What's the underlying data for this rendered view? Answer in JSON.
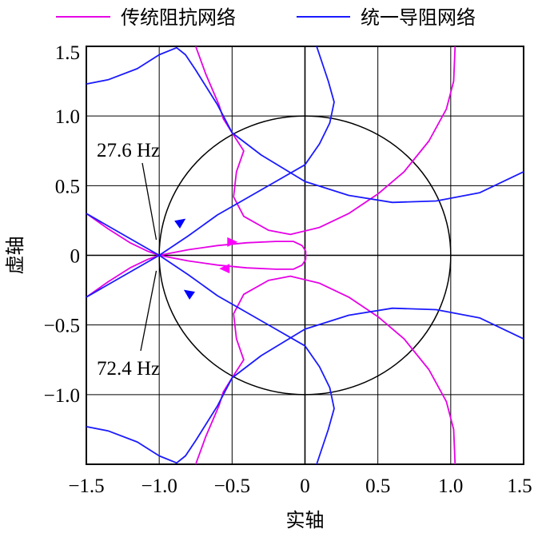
{
  "chart_data": {
    "type": "line",
    "title": "",
    "xlabel": "实轴",
    "ylabel": "虚轴",
    "xlim": [
      -1.5,
      1.5
    ],
    "ylim": [
      -1.5,
      1.5
    ],
    "x_ticks": [
      "−1.5",
      "−1.0",
      "−0.5",
      "0",
      "0.5",
      "1.0",
      "1.5"
    ],
    "y_ticks": [
      "1.5",
      "1.0",
      "0.5",
      "0",
      "−0.5",
      "−1.0"
    ],
    "grid": true,
    "legend_position": "top",
    "unit_circle": true,
    "colors": {
      "traditional": "#e600e6",
      "unified": "#1a1aff",
      "circle": "#000000",
      "arrow_traditional": "#ff00ff",
      "arrow_unified": "#0000ff"
    },
    "annotations": [
      {
        "text": "27.6 Hz",
        "target": [
          -1.02,
          0.1
        ]
      },
      {
        "text": "72.4 Hz",
        "target": [
          -1.02,
          -0.1
        ]
      }
    ],
    "series": [
      {
        "name": "传统阻抗网络",
        "color": "#e600e6",
        "segments": [
          [
            [
              -1.5,
              0.3
            ],
            [
              -1.35,
              0.19
            ],
            [
              -1.2,
              0.09
            ],
            [
              -1.08,
              0.03
            ],
            [
              -1.0,
              0.0
            ],
            [
              -0.8,
              0.04
            ],
            [
              -0.6,
              0.07
            ],
            [
              -0.4,
              0.09
            ],
            [
              -0.2,
              0.1
            ],
            [
              -0.08,
              0.1
            ],
            [
              -0.02,
              0.07
            ],
            [
              0.005,
              0.03
            ],
            [
              0.005,
              -0.03
            ],
            [
              -0.02,
              -0.07
            ],
            [
              -0.08,
              -0.1
            ],
            [
              -0.2,
              -0.1
            ],
            [
              -0.4,
              -0.09
            ],
            [
              -0.6,
              -0.07
            ],
            [
              -0.8,
              -0.04
            ],
            [
              -1.0,
              0.0
            ],
            [
              -1.08,
              -0.03
            ],
            [
              -1.2,
              -0.09
            ],
            [
              -1.35,
              -0.19
            ],
            [
              -1.5,
              -0.3
            ]
          ],
          [
            [
              1.03,
              1.5
            ],
            [
              1.02,
              1.25
            ],
            [
              0.97,
              1.05
            ],
            [
              0.85,
              0.82
            ],
            [
              0.68,
              0.6
            ],
            [
              0.5,
              0.44
            ],
            [
              0.3,
              0.3
            ],
            [
              0.1,
              0.2
            ],
            [
              -0.1,
              0.15
            ],
            [
              -0.25,
              0.18
            ],
            [
              -0.42,
              0.28
            ],
            [
              -0.49,
              0.42
            ],
            [
              -0.47,
              0.6
            ],
            [
              -0.42,
              0.75
            ],
            [
              -0.5,
              0.88
            ],
            [
              -0.56,
              0.98
            ],
            [
              -0.59,
              1.08
            ],
            [
              -0.68,
              1.3
            ],
            [
              -0.75,
              1.5
            ]
          ],
          [
            [
              1.03,
              -1.5
            ],
            [
              1.02,
              -1.25
            ],
            [
              0.97,
              -1.05
            ],
            [
              0.85,
              -0.82
            ],
            [
              0.68,
              -0.6
            ],
            [
              0.5,
              -0.44
            ],
            [
              0.3,
              -0.3
            ],
            [
              0.1,
              -0.2
            ],
            [
              -0.1,
              -0.15
            ],
            [
              -0.25,
              -0.18
            ],
            [
              -0.42,
              -0.28
            ],
            [
              -0.49,
              -0.42
            ],
            [
              -0.47,
              -0.6
            ],
            [
              -0.42,
              -0.75
            ],
            [
              -0.5,
              -0.88
            ],
            [
              -0.56,
              -0.98
            ],
            [
              -0.59,
              -1.08
            ],
            [
              -0.68,
              -1.3
            ],
            [
              -0.75,
              -1.5
            ]
          ]
        ]
      },
      {
        "name": "统一导阻网络",
        "color": "#1a1aff",
        "segments": [
          [
            [
              -1.5,
              -0.3
            ],
            [
              -1.25,
              -0.15
            ],
            [
              -1.0,
              0.0
            ],
            [
              -0.8,
              0.14
            ],
            [
              -0.6,
              0.29
            ],
            [
              -0.4,
              0.41
            ],
            [
              -0.2,
              0.53
            ],
            [
              0.0,
              0.65
            ],
            [
              0.1,
              0.8
            ],
            [
              0.17,
              0.95
            ],
            [
              0.2,
              1.1
            ],
            [
              0.16,
              1.25
            ],
            [
              0.08,
              1.5
            ]
          ],
          [
            [
              -1.5,
              1.23
            ],
            [
              -1.35,
              1.26
            ],
            [
              -1.15,
              1.34
            ],
            [
              -1.0,
              1.44
            ],
            [
              -0.88,
              1.49
            ],
            [
              -0.82,
              1.44
            ],
            [
              -0.75,
              1.33
            ],
            [
              -0.6,
              1.08
            ],
            [
              -0.5,
              0.88
            ],
            [
              -0.3,
              0.72
            ],
            [
              0.0,
              0.53
            ],
            [
              0.3,
              0.43
            ],
            [
              0.6,
              0.38
            ],
            [
              0.9,
              0.39
            ],
            [
              1.2,
              0.45
            ],
            [
              1.5,
              0.6
            ]
          ],
          [
            [
              -1.5,
              0.3
            ],
            [
              -1.25,
              0.15
            ],
            [
              -1.0,
              0.0
            ],
            [
              -0.8,
              -0.14
            ],
            [
              -0.6,
              -0.29
            ],
            [
              -0.4,
              -0.41
            ],
            [
              -0.2,
              -0.53
            ],
            [
              0.0,
              -0.65
            ],
            [
              0.1,
              -0.8
            ],
            [
              0.17,
              -0.95
            ],
            [
              0.2,
              -1.1
            ],
            [
              0.16,
              -1.25
            ],
            [
              0.08,
              -1.5
            ]
          ],
          [
            [
              -1.5,
              -1.23
            ],
            [
              -1.35,
              -1.26
            ],
            [
              -1.15,
              -1.34
            ],
            [
              -1.0,
              -1.44
            ],
            [
              -0.88,
              -1.49
            ],
            [
              -0.82,
              -1.44
            ],
            [
              -0.75,
              -1.33
            ],
            [
              -0.6,
              -1.08
            ],
            [
              -0.5,
              -0.88
            ],
            [
              -0.3,
              -0.72
            ],
            [
              0.0,
              -0.53
            ],
            [
              0.3,
              -0.43
            ],
            [
              0.6,
              -0.38
            ],
            [
              0.9,
              -0.39
            ],
            [
              1.2,
              -0.45
            ],
            [
              1.5,
              -0.6
            ]
          ]
        ]
      }
    ],
    "arrows": [
      {
        "series": "传统阻抗网络",
        "at": [
          -0.5,
          0.095
        ],
        "direction": "right"
      },
      {
        "series": "传统阻抗网络",
        "at": [
          -0.55,
          -0.095
        ],
        "direction": "left"
      },
      {
        "series": "统一导阻网络",
        "at": [
          -0.85,
          0.24
        ],
        "direction": "up-right"
      },
      {
        "series": "统一导阻网络",
        "at": [
          -0.8,
          -0.27
        ],
        "direction": "up-left"
      }
    ]
  }
}
